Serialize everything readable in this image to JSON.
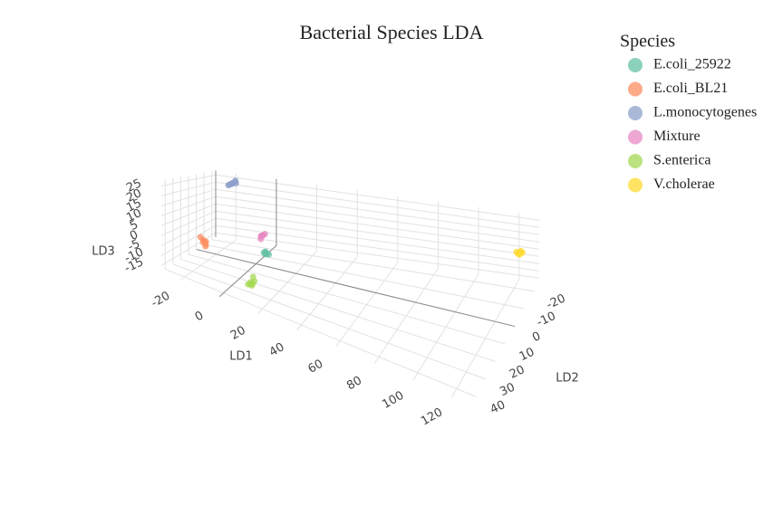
{
  "chart_data": {
    "type": "scatter3d",
    "title": "Bacterial Species LDA",
    "x_label": "LD1",
    "y_label": "LD2",
    "z_label": "LD3",
    "legend_title": "Species",
    "xlim": [
      -30,
      130
    ],
    "xticks": [
      -20,
      0,
      20,
      40,
      60,
      80,
      100,
      120
    ],
    "ylim": [
      -25,
      45
    ],
    "yticks": [
      -20,
      -10,
      0,
      10,
      20,
      30,
      40
    ],
    "zlim": [
      -18,
      28
    ],
    "zticks": [
      -15,
      -10,
      -5,
      0,
      5,
      10,
      15,
      20,
      25
    ],
    "grid": true,
    "series": [
      {
        "name": "E.coli_25922",
        "color": "#66c2a5",
        "x": [
          4,
          5,
          6,
          5,
          4.5,
          5.5
        ],
        "y": [
          0,
          1,
          -1,
          0.5,
          -0.5,
          0
        ],
        "z": [
          -10,
          -9,
          -11,
          -10.5,
          -9.5,
          -10
        ]
      },
      {
        "name": "E.coli_BL21",
        "color": "#fc8d62",
        "x": [
          -21,
          -20,
          -19,
          -20.5,
          -19.5,
          -20,
          -22
        ],
        "y": [
          14,
          15,
          16,
          15.5,
          14.5,
          13,
          15
        ],
        "z": [
          -7,
          -6,
          -8,
          -5,
          -7.5,
          -6.5,
          -4
        ]
      },
      {
        "name": "L.monocytogenes",
        "color": "#8da0cb",
        "x": [
          -20,
          -19,
          -21,
          -18,
          -20.5,
          -19.5,
          -18.5,
          -21.5
        ],
        "y": [
          -20,
          -21,
          -19,
          -20,
          -22,
          -18,
          -20.5,
          -19.5
        ],
        "z": [
          22,
          23,
          21,
          22.5,
          21.5,
          22,
          24,
          20.5
        ]
      },
      {
        "name": "Mixture",
        "color": "#e78ac3",
        "x": [
          3,
          4,
          2,
          3.5,
          2.5,
          4.5,
          3
        ],
        "y": [
          0,
          1,
          -1,
          0.5,
          -0.5,
          0,
          1.5
        ],
        "z": [
          0,
          1,
          -1,
          0.5,
          -0.5,
          1.5,
          -1.5
        ]
      },
      {
        "name": "S.enterica",
        "color": "#a6d854",
        "x": [
          8,
          9,
          7,
          8.5,
          7.5,
          9.5,
          8,
          7
        ],
        "y": [
          25,
          26,
          24,
          25.5,
          24.5,
          25,
          23,
          26.5
        ],
        "z": [
          -16,
          -15,
          -17,
          -16.5,
          -15.5,
          -14,
          -13,
          -16
        ]
      },
      {
        "name": "V.cholerae",
        "color": "#ffd92f",
        "x": [
          125,
          124,
          126,
          125.5,
          124.5,
          125
        ],
        "y": [
          -15,
          -14,
          -16,
          -15.5,
          -14.5,
          -15
        ],
        "z": [
          12,
          13,
          11,
          12.5,
          11.5,
          10.5
        ]
      }
    ]
  }
}
